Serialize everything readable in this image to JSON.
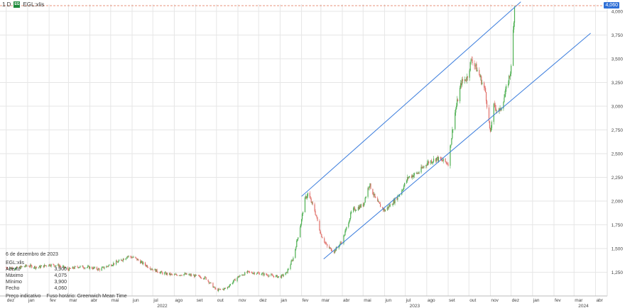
{
  "header": {
    "interval": "1 D",
    "logo_text": "EG",
    "symbol": "EGL:xlis"
  },
  "info_panel": {
    "date": "6 de dezembro de 2023",
    "symbol": "EGL:xlis",
    "rows": [
      {
        "label": "Aberto",
        "value": "3,900"
      },
      {
        "label": "Máximo",
        "value": "4,075"
      },
      {
        "label": "Mínimo",
        "value": "3,900"
      },
      {
        "label": "Fecho",
        "value": "4,060"
      }
    ],
    "footer_left": "Preço indicativo",
    "footer_right": "Fuso horário: Greenwich Mean Time"
  },
  "colors": {
    "up": "#4caf50",
    "down": "#e0706a",
    "channel": "#3b7ddd",
    "price_line": "#e07050",
    "price_tag": "#2f6fd6",
    "grid": "#e6e6e6"
  },
  "chart_data": {
    "type": "candlestick",
    "last_price_label": "4,060",
    "ylim": [
      1000,
      4060
    ],
    "y_ticks": [
      {
        "value": 1250,
        "label": "1,250"
      },
      {
        "value": 1500,
        "label": "1,500"
      },
      {
        "value": 1750,
        "label": "1,750"
      },
      {
        "value": 2000,
        "label": "2,000"
      },
      {
        "value": 2250,
        "label": "2,250"
      },
      {
        "value": 2500,
        "label": "2,500"
      },
      {
        "value": 2750,
        "label": "2,750"
      },
      {
        "value": 3000,
        "label": "3,000"
      },
      {
        "value": 3250,
        "label": "3,250"
      },
      {
        "value": 3500,
        "label": "3,500"
      },
      {
        "value": 3750,
        "label": "3,750"
      },
      {
        "value": 4000,
        "label": "4,000"
      }
    ],
    "x_ticks": [
      {
        "value": "2021-12-01",
        "label": "dez",
        "year": ""
      },
      {
        "value": "2022-01-01",
        "label": "jan",
        "year": ""
      },
      {
        "value": "2022-02-01",
        "label": "fev",
        "year": ""
      },
      {
        "value": "2022-03-01",
        "label": "mar",
        "year": ""
      },
      {
        "value": "2022-04-01",
        "label": "abr",
        "year": ""
      },
      {
        "value": "2022-05-01",
        "label": "mai",
        "year": ""
      },
      {
        "value": "2022-06-01",
        "label": "jun",
        "year": ""
      },
      {
        "value": "2022-07-01",
        "label": "jul",
        "year": "2022"
      },
      {
        "value": "2022-08-01",
        "label": "ago",
        "year": ""
      },
      {
        "value": "2022-09-01",
        "label": "set",
        "year": ""
      },
      {
        "value": "2022-10-01",
        "label": "out",
        "year": ""
      },
      {
        "value": "2022-11-01",
        "label": "nov",
        "year": ""
      },
      {
        "value": "2022-12-01",
        "label": "dez",
        "year": ""
      },
      {
        "value": "2023-01-01",
        "label": "jan",
        "year": ""
      },
      {
        "value": "2023-02-01",
        "label": "fev",
        "year": ""
      },
      {
        "value": "2023-03-01",
        "label": "mar",
        "year": ""
      },
      {
        "value": "2023-04-01",
        "label": "abr",
        "year": ""
      },
      {
        "value": "2023-05-01",
        "label": "mai",
        "year": ""
      },
      {
        "value": "2023-06-01",
        "label": "jun",
        "year": ""
      },
      {
        "value": "2023-07-01",
        "label": "jul",
        "year": "2023"
      },
      {
        "value": "2023-08-01",
        "label": "ago",
        "year": ""
      },
      {
        "value": "2023-09-01",
        "label": "set",
        "year": ""
      },
      {
        "value": "2023-10-01",
        "label": "out",
        "year": ""
      },
      {
        "value": "2023-11-01",
        "label": "nov",
        "year": ""
      },
      {
        "value": "2023-12-01",
        "label": "dez",
        "year": ""
      },
      {
        "value": "2024-01-01",
        "label": "jan",
        "year": ""
      },
      {
        "value": "2024-02-01",
        "label": "fev",
        "year": ""
      },
      {
        "value": "2024-03-01",
        "label": "mar",
        "year": "2024"
      },
      {
        "value": "2024-04-01",
        "label": "abr",
        "year": ""
      }
    ],
    "closes": [
      [
        "2021-12-01",
        1300
      ],
      [
        "2021-12-15",
        1290
      ],
      [
        "2022-01-01",
        1320
      ],
      [
        "2022-01-15",
        1300
      ],
      [
        "2022-02-01",
        1330
      ],
      [
        "2022-02-15",
        1320
      ],
      [
        "2022-03-01",
        1280
      ],
      [
        "2022-03-15",
        1310
      ],
      [
        "2022-04-01",
        1300
      ],
      [
        "2022-04-15",
        1280
      ],
      [
        "2022-05-01",
        1330
      ],
      [
        "2022-05-15",
        1370
      ],
      [
        "2022-05-25",
        1420
      ],
      [
        "2022-06-05",
        1400
      ],
      [
        "2022-06-15",
        1350
      ],
      [
        "2022-07-01",
        1280
      ],
      [
        "2022-07-15",
        1240
      ],
      [
        "2022-08-01",
        1220
      ],
      [
        "2022-08-15",
        1230
      ],
      [
        "2022-09-01",
        1210
      ],
      [
        "2022-09-15",
        1190
      ],
      [
        "2022-10-01",
        1060
      ],
      [
        "2022-10-15",
        1080
      ],
      [
        "2022-11-01",
        1200
      ],
      [
        "2022-11-15",
        1250
      ],
      [
        "2022-12-01",
        1240
      ],
      [
        "2022-12-15",
        1220
      ],
      [
        "2023-01-01",
        1200
      ],
      [
        "2023-01-10",
        1240
      ],
      [
        "2023-01-20",
        1400
      ],
      [
        "2023-02-01",
        1800
      ],
      [
        "2023-02-05",
        2000
      ],
      [
        "2023-02-10",
        2080
      ],
      [
        "2023-02-20",
        1900
      ],
      [
        "2023-03-01",
        1650
      ],
      [
        "2023-03-10",
        1520
      ],
      [
        "2023-03-20",
        1470
      ],
      [
        "2023-04-01",
        1580
      ],
      [
        "2023-04-15",
        1900
      ],
      [
        "2023-05-01",
        1960
      ],
      [
        "2023-05-10",
        2180
      ],
      [
        "2023-05-20",
        2000
      ],
      [
        "2023-06-01",
        1900
      ],
      [
        "2023-06-15",
        2000
      ],
      [
        "2023-06-25",
        2100
      ],
      [
        "2023-07-05",
        2250
      ],
      [
        "2023-07-20",
        2300
      ],
      [
        "2023-08-01",
        2400
      ],
      [
        "2023-08-15",
        2450
      ],
      [
        "2023-09-01",
        2400
      ],
      [
        "2023-09-10",
        2900
      ],
      [
        "2023-09-20",
        3250
      ],
      [
        "2023-09-28",
        3300
      ],
      [
        "2023-10-05",
        3500
      ],
      [
        "2023-10-15",
        3350
      ],
      [
        "2023-10-25",
        3150
      ],
      [
        "2023-11-01",
        2700
      ],
      [
        "2023-11-05",
        3000
      ],
      [
        "2023-11-15",
        2950
      ],
      [
        "2023-11-25",
        3200
      ],
      [
        "2023-12-01",
        3400
      ],
      [
        "2023-12-06",
        4060
      ]
    ],
    "trendlines": [
      {
        "from": [
          "2023-02-01",
          2050
        ],
        "to": [
          "2023-12-15",
          4100
        ]
      },
      {
        "from": [
          "2023-03-05",
          1390
        ],
        "to": [
          "2024-03-25",
          3770
        ]
      }
    ]
  }
}
